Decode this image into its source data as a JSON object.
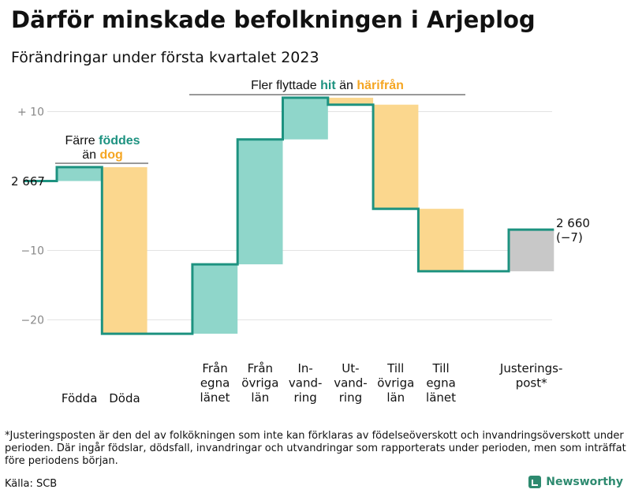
{
  "title": "Därför minskade befolkningen i Arjeplog",
  "subtitle": "Förändringar under första kvartalet 2023",
  "footnote": "*Justeringsposten är den del av folkökningen som inte kan förklaras av födelseöverskott och invandringsöverskott under perioden. Där ingår födslar, dödsfall, invandringar och utvandringar som rapporterats under perioden, men som inträffat före periodens början.",
  "source": "Källa: SCB",
  "brand": "Newsworthy",
  "colors": {
    "line": "#1d9280",
    "increase": "#8fd6ca",
    "decrease": "#fbd78e",
    "adjustment": "#c8c8c8",
    "accent_teal": "#1d9280",
    "accent_orange": "#f5a623",
    "grid": "#e3e3e3"
  },
  "annotations": {
    "births": {
      "line1": "Färre",
      "hl1": "föddes",
      "line2": "än",
      "hl2": "dog"
    },
    "migration": {
      "pre": "Fler flyttade",
      "hl1": "hit",
      "mid": "än",
      "hl2": "härifrån"
    }
  },
  "start_label": "2 667",
  "end_label": {
    "value": "2 660",
    "change": "(−7)"
  },
  "chart_data": {
    "type": "waterfall",
    "start_value": 2667,
    "end_value": 2660,
    "y_ticks": [
      {
        "value": 10,
        "label": "+ 10"
      },
      {
        "value": -10,
        "label": "−10"
      },
      {
        "value": -20,
        "label": "−20"
      }
    ],
    "ylim": [
      -23,
      12
    ],
    "steps": [
      {
        "label": [
          "Födda"
        ],
        "delta": 2
      },
      {
        "label": [
          "Döda"
        ],
        "delta": -24
      },
      {
        "label": [],
        "delta": 0
      },
      {
        "label": [
          "Från",
          "egna",
          "länet"
        ],
        "delta": 10
      },
      {
        "label": [
          "Från",
          "övriga",
          "län"
        ],
        "delta": 18
      },
      {
        "label": [
          "In-",
          "vand-",
          "ring"
        ],
        "delta": 6
      },
      {
        "label": [
          "Ut-",
          "vand-",
          "ring"
        ],
        "delta": -1
      },
      {
        "label": [
          "Till",
          "övriga",
          "län"
        ],
        "delta": -15
      },
      {
        "label": [
          "Till",
          "egna",
          "länet"
        ],
        "delta": -9
      },
      {
        "label": [],
        "delta": 0
      },
      {
        "label": [
          "Justerings-",
          "post*"
        ],
        "delta": 6
      }
    ]
  }
}
